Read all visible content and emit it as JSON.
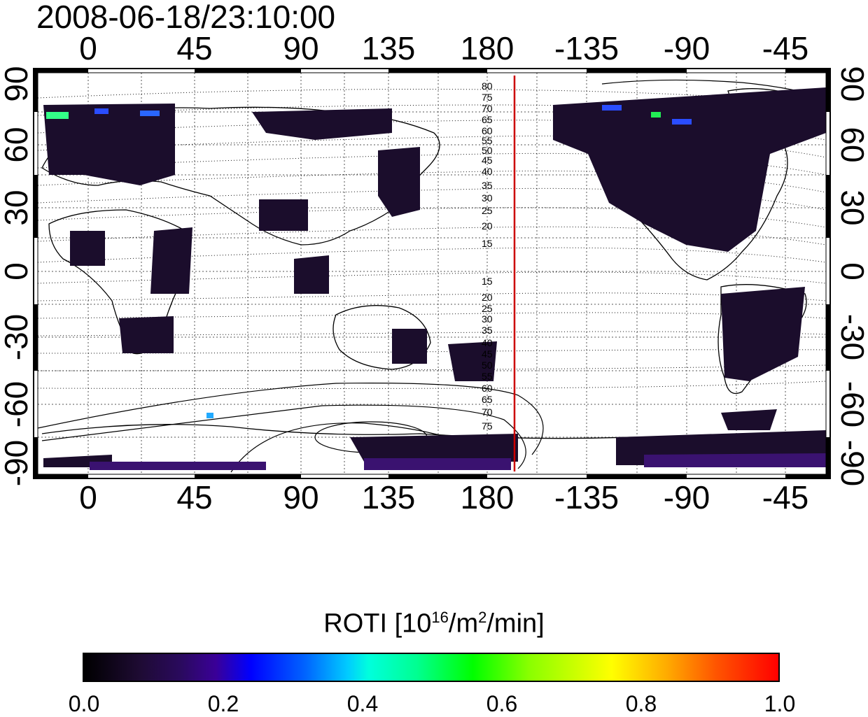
{
  "timestamp": "2008-06-18/23:10:00",
  "map": {
    "lon_ticks": [
      "0",
      "45",
      "90",
      "135",
      "180",
      "-135",
      "-90",
      "-45"
    ],
    "lat_ticks": [
      "90",
      "60",
      "30",
      "0",
      "-30",
      "-60",
      "-90"
    ],
    "contour_labels_north": [
      "80",
      "75",
      "70",
      "65",
      "60",
      "55",
      "50",
      "45",
      "40",
      "35",
      "30",
      "25",
      "20",
      "15"
    ],
    "contour_labels_south": [
      "15",
      "20",
      "25",
      "30",
      "35",
      "40",
      "45",
      "50",
      "55",
      "60",
      "65",
      "70",
      "75"
    ],
    "meridian_line_color": "#cc0000",
    "coast_color": "#000000"
  },
  "colorbar": {
    "title_prefix": "ROTI  [10",
    "title_sup1": "16",
    "title_mid": "/m",
    "title_sup2": "2",
    "title_suffix": "/min]",
    "ticks": [
      "0.0",
      "0.2",
      "0.4",
      "0.6",
      "0.8",
      "1.0"
    ],
    "colors": [
      "#000000",
      "#2a0a5e",
      "#0000ff",
      "#00ffdd",
      "#00ff00",
      "#ffff00",
      "#ff0000"
    ]
  }
}
